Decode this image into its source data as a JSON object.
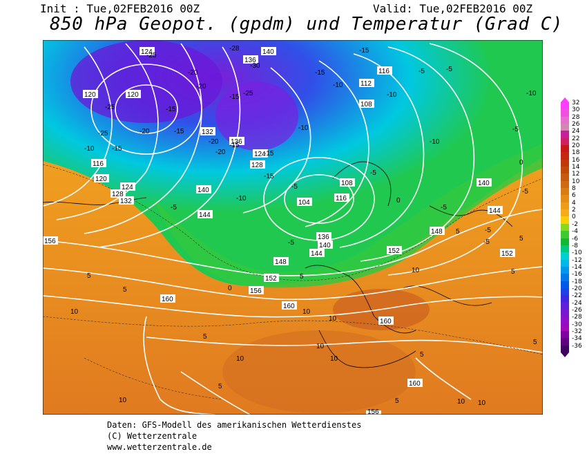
{
  "header": {
    "init": "Init : Tue,02FEB2016 00Z",
    "valid": "Valid: Tue,02FEB2016 00Z",
    "title": "850 hPa Geopot. (gpdm) und Temperatur (Grad C)"
  },
  "footer": {
    "line1": "Daten: GFS-Modell des amerikanischen Wetterdienstes",
    "line2": "(C) Wetterzentrale",
    "line3": "www.wetterzentrale.de"
  },
  "legend": {
    "levels": [
      "32",
      "30",
      "28",
      "26",
      "24",
      "22",
      "20",
      "18",
      "16",
      "14",
      "12",
      "10",
      "8",
      "6",
      "4",
      "2",
      "0",
      "-2",
      "-4",
      "-6",
      "-8",
      "-10",
      "-12",
      "-14",
      "-16",
      "-18",
      "-20",
      "-22",
      "-24",
      "-26",
      "-28",
      "-30",
      "-32",
      "-34",
      "-36"
    ],
    "colors": [
      "#ff3cff",
      "#f050e0",
      "#e070c8",
      "#d088b0",
      "#c8209a",
      "#d02060",
      "#c81818",
      "#c42810",
      "#c03808",
      "#c04a08",
      "#c85a10",
      "#d06a10",
      "#d87c14",
      "#e48c14",
      "#ee9c14",
      "#f6ac18",
      "#f6d000",
      "#88d820",
      "#40c830",
      "#10b838",
      "#00c880",
      "#00d0d0",
      "#00b8e8",
      "#0098e8",
      "#0078e8",
      "#0058e8",
      "#2040e8",
      "#4028e0",
      "#6020d8",
      "#7818d0",
      "#9010c8",
      "#a008b8",
      "#8000a0",
      "#600080",
      "#400060"
    ]
  },
  "map": {
    "geopotential_labels": [
      "124",
      "120",
      "136",
      "140",
      "140",
      "116",
      "112",
      "108",
      "104",
      "144",
      "124",
      "128",
      "132",
      "116",
      "120",
      "124",
      "128",
      "132",
      "136",
      "140",
      "144",
      "148",
      "152",
      "156",
      "160",
      "160",
      "160",
      "156",
      "152",
      "148",
      "144",
      "140",
      "136",
      "132",
      "128",
      "124",
      "120",
      "112",
      "116",
      "108",
      "104",
      "144",
      "152",
      "156",
      "160",
      "156"
    ],
    "temperature_labels": [
      "-25",
      "-28",
      "-30",
      "-20",
      "-20",
      "-25",
      "-20",
      "-15",
      "-15",
      "-25",
      "-25",
      "-20",
      "-15",
      "-15",
      "-10",
      "-10",
      "-15",
      "-10",
      "-15",
      "-20",
      "-10",
      "-15",
      "-10",
      "-5",
      "-10",
      "-15",
      "-10",
      "-5",
      "-5",
      "-10",
      "-15",
      "-5",
      "-5",
      "-10",
      "-5",
      "-5",
      "0",
      "0",
      "-5",
      "-5",
      "-5",
      "-5",
      "0",
      "5",
      "5",
      "5",
      "5",
      "5",
      "5",
      "5",
      "10",
      "10",
      "10",
      "10",
      "10",
      "10",
      "10",
      "5",
      "5",
      "10",
      "10",
      "10",
      "5",
      "5"
    ]
  },
  "colors": {
    "cold_purple": "#8a2be2",
    "cold_blue": "#1e90ff",
    "cyan": "#00ced1",
    "green": "#32cd32",
    "yellow": "#f0d000",
    "orange": "#f0a020",
    "dark_orange": "#d9782a"
  }
}
